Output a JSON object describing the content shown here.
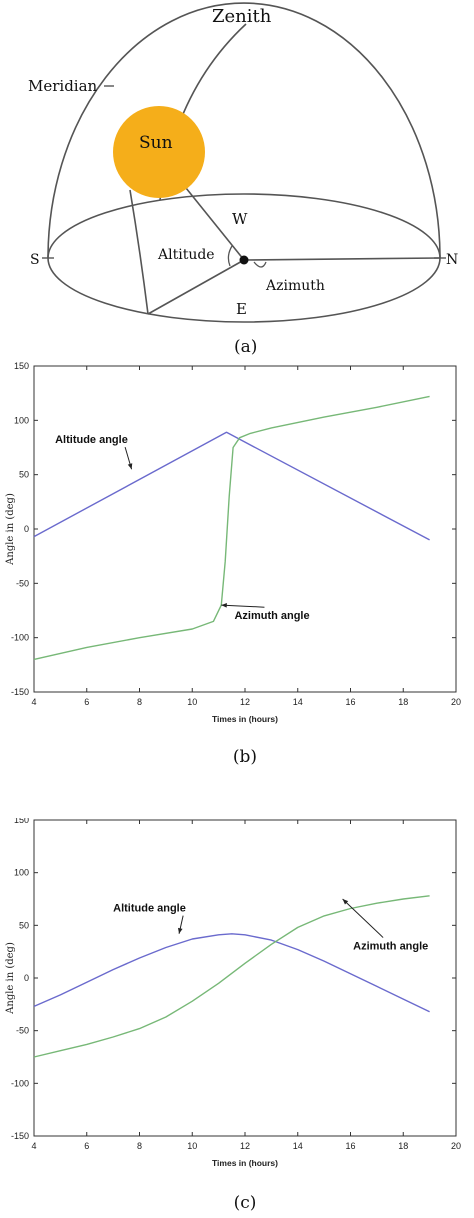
{
  "diagram": {
    "labels": {
      "zenith": "Zenith",
      "meridian": "Meridian",
      "sun": "Sun",
      "w": "W",
      "s": "S",
      "n": "N",
      "e": "E",
      "altitude": "Altitude",
      "azimuth": "Azimuth"
    },
    "caption": "(a)",
    "colors": {
      "sun": "#f5ae1a",
      "lines": "#555555"
    }
  },
  "chart_data": [
    {
      "type": "line",
      "caption": "(b)",
      "xlabel": "Times in (hours)",
      "ylabel": "Angle in (deg)",
      "xlim": [
        4,
        20
      ],
      "ylim": [
        -150,
        150
      ],
      "xticks": [
        4,
        6,
        8,
        10,
        12,
        14,
        16,
        18,
        20
      ],
      "yticks": [
        -150,
        -100,
        -50,
        0,
        50,
        100,
        150
      ],
      "grid": false,
      "series": [
        {
          "key": "altitude",
          "color": "#6a6acd",
          "x": [
            4,
            11.3,
            19
          ],
          "y": [
            -7,
            89,
            -10
          ]
        },
        {
          "key": "azimuth",
          "color": "#77b877",
          "x": [
            4,
            6,
            8,
            10,
            10.8,
            11.1,
            11.25,
            11.4,
            11.55,
            11.8,
            12.2,
            13,
            15,
            17,
            19
          ],
          "y": [
            -120,
            -109,
            -100,
            -92,
            -85,
            -70,
            -30,
            30,
            75,
            84,
            88,
            93,
            103,
            112,
            122
          ]
        }
      ],
      "annotations": [
        {
          "text": "Altitude angle",
          "x": 4.8,
          "y": 79,
          "arrow_to": [
            7.7,
            55
          ]
        },
        {
          "text": "Azimuth angle",
          "x": 11.6,
          "y": -83,
          "arrow_to": [
            11.1,
            -70
          ]
        }
      ]
    },
    {
      "type": "line",
      "caption": "(c)",
      "xlabel": "Times in (hours)",
      "ylabel": "Angle in (deg)",
      "xlim": [
        4,
        20
      ],
      "ylim": [
        -150,
        150
      ],
      "xticks": [
        4,
        6,
        8,
        10,
        12,
        14,
        16,
        18,
        20
      ],
      "yticks": [
        -150,
        -100,
        -50,
        0,
        50,
        100,
        150
      ],
      "grid": false,
      "series": [
        {
          "key": "altitude",
          "color": "#6a6acd",
          "x": [
            4,
            5,
            6,
            7,
            8,
            9,
            10,
            11,
            11.5,
            12,
            13,
            14,
            15,
            16,
            17,
            18,
            19
          ],
          "y": [
            -27,
            -16,
            -4,
            8,
            19,
            29,
            37,
            41,
            42,
            41,
            36,
            27,
            16,
            4,
            -8,
            -20,
            -32
          ]
        },
        {
          "key": "azimuth",
          "color": "#77b877",
          "x": [
            4,
            5,
            6,
            7,
            8,
            9,
            10,
            11,
            12,
            13,
            14,
            15,
            16,
            17,
            18,
            19
          ],
          "y": [
            -75,
            -69,
            -63,
            -56,
            -48,
            -37,
            -22,
            -5,
            14,
            32,
            48,
            59,
            66,
            71,
            75,
            78
          ]
        }
      ],
      "annotations": [
        {
          "text": "Altitude angle",
          "x": 7.0,
          "y": 63,
          "arrow_to": [
            9.5,
            42
          ]
        },
        {
          "text": "Azimuth angle",
          "x": 16.1,
          "y": 27,
          "arrow_to": [
            15.7,
            75
          ]
        }
      ]
    }
  ]
}
